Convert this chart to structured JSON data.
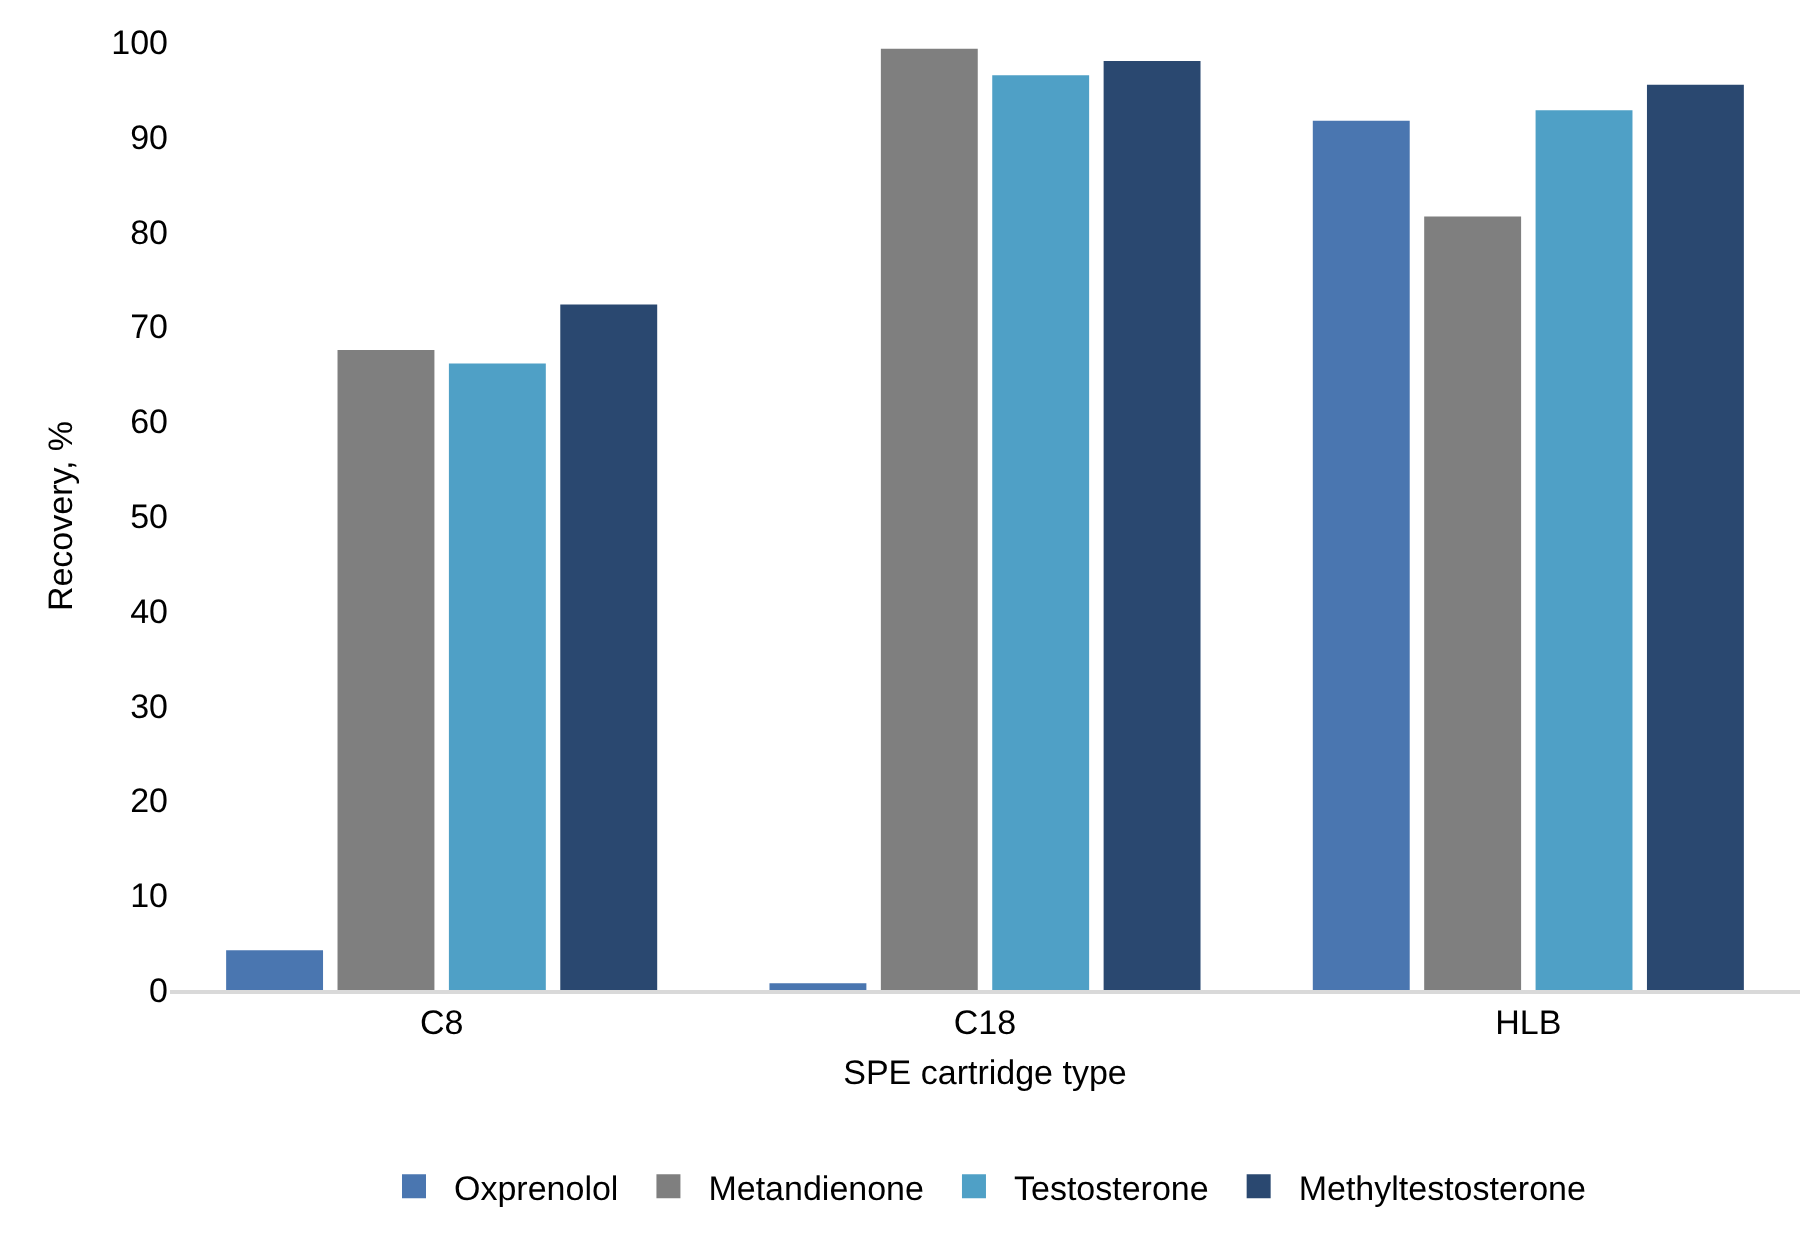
{
  "chart_data": {
    "type": "bar",
    "xlabel": "SPE cartridge type",
    "ylabel": "Recovery, %",
    "categories": [
      "C8",
      "C18",
      "HLB"
    ],
    "series": [
      {
        "name": "Oxprenolol",
        "color": "#4a76b0",
        "values": [
          4.2,
          0.7,
          91.7
        ]
      },
      {
        "name": "Metandienone",
        "color": "#7f7f7f",
        "values": [
          67.5,
          99.3,
          81.6
        ]
      },
      {
        "name": "Testosterone",
        "color": "#4fa0c6",
        "values": [
          66.1,
          96.5,
          92.8
        ]
      },
      {
        "name": "Methyltestosterone",
        "color": "#2a4870",
        "values": [
          72.3,
          98.0,
          95.5
        ]
      }
    ],
    "ylim": [
      0,
      100
    ],
    "yticks": [
      0,
      10,
      20,
      30,
      40,
      50,
      60,
      70,
      80,
      90,
      100
    ],
    "grid": false,
    "legend": "bottom"
  }
}
